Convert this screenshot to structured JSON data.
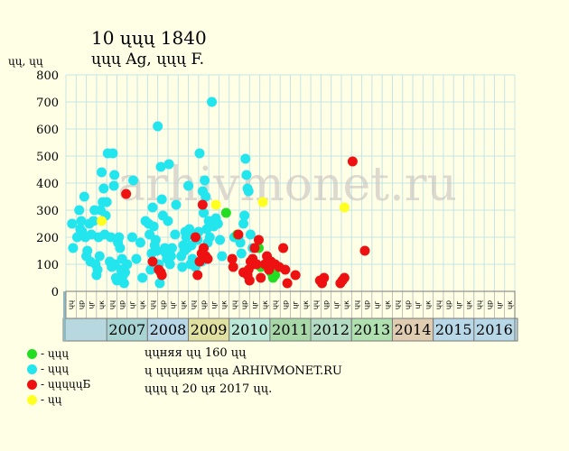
{
  "title": "10 ųųų 1840",
  "subtitle": "ųųų Ag, ųųų F.",
  "y_unit": "ųų, ųų",
  "watermark": "arhivmonet.ru",
  "notes": {
    "line1": "ųųняя ųų 160 ųų",
    "line2": "ų ųųųиям ųųа ARHIVMONET.RU",
    "line3": "ųųų ų 20 ųя 2017 ųų."
  },
  "legend": [
    {
      "label": "- ųųų",
      "color": "#22dd22"
    },
    {
      "label": "- ųųų",
      "color": "#22e5ee"
    },
    {
      "label": "- ųųųųųБ",
      "color": "#ee1111"
    },
    {
      "label": "- ųų",
      "color": "#ffff22"
    }
  ],
  "chart_data": {
    "type": "scatter",
    "ylim": [
      0,
      800
    ],
    "yticks": [
      0,
      100,
      200,
      300,
      400,
      500,
      600,
      700,
      800
    ],
    "grid": true,
    "years": [
      {
        "label": "2007",
        "color": "#a8d4d4"
      },
      {
        "label": "2008",
        "color": "#b8d8e8"
      },
      {
        "label": "2009",
        "color": "#e0e0a0"
      },
      {
        "label": "2010",
        "color": "#bce8d8"
      },
      {
        "label": "2011",
        "color": "#a8d8a8"
      },
      {
        "label": "2012",
        "color": "#b4dcc4"
      },
      {
        "label": "2013",
        "color": "#b0e0b0"
      },
      {
        "label": "2014",
        "color": "#e0ccb0"
      },
      {
        "label": "2015",
        "color": "#b8d8e8"
      },
      {
        "label": "2016",
        "color": "#b8d8e8"
      }
    ],
    "months": [
      "ųų",
      "ųр",
      "ųг",
      "ųк",
      "ųų",
      "ųр",
      "ųг",
      "ųк",
      "ųų",
      "ųр",
      "ųг",
      "ųк",
      "ųų",
      "ųр",
      "ųг",
      "ųк",
      "ųų",
      "ųр",
      "ųг",
      "ųк",
      "ųų",
      "ųр",
      "ųг",
      "ųк",
      "ųų",
      "ųр",
      "ųг",
      "ųк",
      "ųų",
      "ųр",
      "ųг",
      "ųк",
      "ųų",
      "ųр",
      "ųг",
      "ųк",
      "ųų",
      "ųр",
      "ųг",
      "ųк",
      "ųų",
      "ųр",
      "ųг",
      "ųк"
    ],
    "series": [
      {
        "color": "#22e5ee",
        "points": [
          [
            0.1,
            250
          ],
          [
            0.2,
            160
          ],
          [
            0.6,
            200
          ],
          [
            0.9,
            230
          ],
          [
            0.8,
            300
          ],
          [
            1.0,
            260
          ],
          [
            1.1,
            220
          ],
          [
            1.3,
            350
          ],
          [
            1.5,
            130
          ],
          [
            1.4,
            200
          ],
          [
            1.6,
            150
          ],
          [
            1.9,
            110
          ],
          [
            1.8,
            250
          ],
          [
            2.0,
            210
          ],
          [
            2.2,
            260
          ],
          [
            2.3,
            300
          ],
          [
            2.4,
            100
          ],
          [
            2.5,
            60
          ],
          [
            2.6,
            80
          ],
          [
            2.7,
            200
          ],
          [
            2.8,
            130
          ],
          [
            2.9,
            300
          ],
          [
            3.0,
            440
          ],
          [
            3.1,
            330
          ],
          [
            3.2,
            380
          ],
          [
            3.3,
            210
          ],
          [
            3.4,
            280
          ],
          [
            3.5,
            330
          ],
          [
            3.6,
            510
          ],
          [
            3.8,
            110
          ],
          [
            3.9,
            200
          ],
          [
            4.0,
            90
          ],
          [
            4.1,
            510
          ],
          [
            4.2,
            390
          ],
          [
            4.25,
            430
          ],
          [
            4.3,
            100
          ],
          [
            4.4,
            50
          ],
          [
            4.5,
            40
          ],
          [
            4.6,
            180
          ],
          [
            4.7,
            200
          ],
          [
            4.8,
            160
          ],
          [
            4.9,
            80
          ],
          [
            5.0,
            120
          ],
          [
            5.1,
            60
          ],
          [
            5.2,
            30
          ],
          [
            5.3,
            70
          ],
          [
            5.5,
            100
          ],
          [
            6.1,
            410
          ],
          [
            6.0,
            200
          ],
          [
            6.4,
            120
          ],
          [
            6.8,
            180
          ],
          [
            7.0,
            50
          ],
          [
            7.3,
            260
          ],
          [
            7.6,
            250
          ],
          [
            7.7,
            210
          ],
          [
            7.8,
            80
          ],
          [
            7.9,
            140
          ],
          [
            8.0,
            310
          ],
          [
            8.1,
            240
          ],
          [
            8.2,
            170
          ],
          [
            8.3,
            190
          ],
          [
            8.4,
            150
          ],
          [
            8.5,
            610
          ],
          [
            8.6,
            100
          ],
          [
            8.7,
            30
          ],
          [
            8.8,
            460
          ],
          [
            8.9,
            340
          ],
          [
            9.0,
            280
          ],
          [
            9.1,
            150
          ],
          [
            9.2,
            160
          ],
          [
            9.3,
            140
          ],
          [
            9.4,
            120
          ],
          [
            9.5,
            260
          ],
          [
            9.6,
            470
          ],
          [
            9.7,
            100
          ],
          [
            9.8,
            130
          ],
          [
            9.9,
            160
          ],
          [
            10.2,
            210
          ],
          [
            10.3,
            320
          ],
          [
            10.8,
            130
          ],
          [
            10.9,
            90
          ],
          [
            11.0,
            170
          ],
          [
            11.1,
            150
          ],
          [
            11.2,
            220
          ],
          [
            11.3,
            200
          ],
          [
            11.4,
            160
          ],
          [
            11.5,
            390
          ],
          [
            11.6,
            230
          ],
          [
            11.7,
            100
          ],
          [
            11.8,
            170
          ],
          [
            11.9,
            120
          ],
          [
            12.0,
            210
          ],
          [
            12.2,
            90
          ],
          [
            12.4,
            190
          ],
          [
            12.5,
            220
          ],
          [
            12.6,
            510
          ],
          [
            12.8,
            110
          ],
          [
            12.9,
            370
          ],
          [
            13.0,
            290
          ],
          [
            13.1,
            410
          ],
          [
            13.2,
            350
          ],
          [
            13.3,
            230
          ],
          [
            13.4,
            180
          ],
          [
            13.5,
            260
          ],
          [
            13.6,
            200
          ],
          [
            13.8,
            700
          ],
          [
            14.0,
            240
          ],
          [
            14.2,
            270
          ],
          [
            14.4,
            250
          ],
          [
            14.6,
            190
          ],
          [
            14.8,
            130
          ],
          [
            16.0,
            200
          ],
          [
            16.4,
            200
          ],
          [
            16.6,
            180
          ],
          [
            16.7,
            140
          ],
          [
            16.9,
            250
          ],
          [
            17.0,
            280
          ],
          [
            17.1,
            490
          ],
          [
            17.2,
            430
          ],
          [
            17.3,
            380
          ],
          [
            17.4,
            370
          ],
          [
            17.6,
            210
          ],
          [
            17.8,
            160
          ]
        ]
      },
      {
        "color": "#22dd22",
        "points": [
          [
            15.2,
            290
          ],
          [
            16.3,
            210
          ],
          [
            18.4,
            160
          ],
          [
            18.6,
            90
          ],
          [
            19.6,
            70
          ],
          [
            19.8,
            50
          ],
          [
            20.0,
            60
          ]
        ]
      },
      {
        "color": "#ee1111",
        "points": [
          [
            5.4,
            360
          ],
          [
            8.0,
            110
          ],
          [
            8.6,
            80
          ],
          [
            8.8,
            70
          ],
          [
            8.9,
            60
          ],
          [
            12.2,
            200
          ],
          [
            12.4,
            60
          ],
          [
            12.6,
            110
          ],
          [
            12.8,
            140
          ],
          [
            12.9,
            320
          ],
          [
            13.0,
            160
          ],
          [
            13.2,
            130
          ],
          [
            13.4,
            120
          ],
          [
            15.8,
            120
          ],
          [
            15.9,
            90
          ],
          [
            16.4,
            210
          ],
          [
            16.9,
            70
          ],
          [
            17.3,
            60
          ],
          [
            17.4,
            80
          ],
          [
            17.5,
            40
          ],
          [
            17.6,
            110
          ],
          [
            17.8,
            120
          ],
          [
            17.9,
            100
          ],
          [
            18.0,
            160
          ],
          [
            18.2,
            100
          ],
          [
            18.4,
            190
          ],
          [
            18.6,
            50
          ],
          [
            19.0,
            100
          ],
          [
            19.2,
            130
          ],
          [
            19.4,
            80
          ],
          [
            19.6,
            110
          ],
          [
            20.0,
            100
          ],
          [
            20.4,
            90
          ],
          [
            20.8,
            160
          ],
          [
            21.0,
            80
          ],
          [
            21.2,
            30
          ],
          [
            22.0,
            60
          ],
          [
            24.4,
            40
          ],
          [
            24.6,
            30
          ],
          [
            24.8,
            50
          ],
          [
            26.4,
            30
          ],
          [
            26.6,
            40
          ],
          [
            26.8,
            50
          ],
          [
            27.6,
            480
          ],
          [
            28.8,
            150
          ]
        ]
      },
      {
        "color": "#ffff22",
        "points": [
          [
            3.0,
            260
          ],
          [
            14.2,
            320
          ],
          [
            18.8,
            330
          ],
          [
            26.8,
            310
          ]
        ]
      }
    ]
  }
}
